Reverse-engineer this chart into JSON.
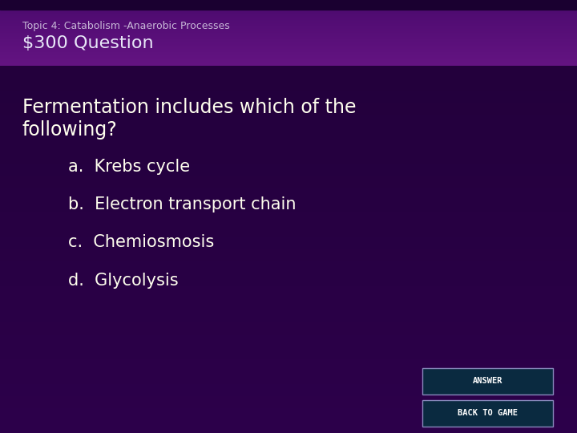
{
  "title_small": "Topic 4: Catabolism -Anaerobic Processes",
  "title_large": "$300 Question",
  "question_line1": "Fermentation includes which of the",
  "question_line2": "following?",
  "answers": [
    "a.  Krebs cycle",
    "b.  Electron transport chain",
    "c.  Chemiosmosis",
    "d.  Glycolysis"
  ],
  "button1": "ANSWER",
  "button2": "BACK TO GAME",
  "bg_main_top": "#2a0050",
  "bg_main_bottom": "#1a0040",
  "bg_header_top": "#5a2070",
  "bg_header_bottom": "#7a35a0",
  "text_color_header_small": "#c8b8d8",
  "text_color_header_large": "#e8e8f8",
  "text_color_body": "#ffffee",
  "title_small_fontsize": 9,
  "title_large_fontsize": 16,
  "question_fontsize": 17,
  "answer_fontsize": 15,
  "button_bg": "#0a2a40",
  "button_border": "#8888bb",
  "button_text_color": "#ffffff",
  "button_fontsize": 7.5
}
